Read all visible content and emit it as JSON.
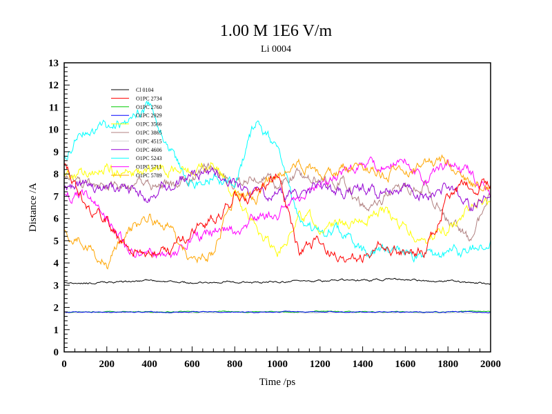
{
  "chart_data": {
    "type": "line",
    "title": "1.00 M 1E6 V/m",
    "subtitle": "Li 0004",
    "xlabel": "Time /ps",
    "ylabel": "Distance /A",
    "xlim": [
      0,
      2000
    ],
    "ylim": [
      0,
      13
    ],
    "xticks": [
      "0",
      "200",
      "400",
      "600",
      "800",
      "1000",
      "1200",
      "1400",
      "1600",
      "1800",
      "2000"
    ],
    "yticks": [
      "0",
      "1",
      "2",
      "3",
      "4",
      "5",
      "6",
      "7",
      "8",
      "9",
      "10",
      "11",
      "12",
      "13"
    ],
    "grid": false,
    "legend_position": "top-left",
    "x": [
      0,
      100,
      200,
      300,
      400,
      500,
      600,
      700,
      800,
      900,
      1000,
      1100,
      1200,
      1300,
      1400,
      1500,
      1600,
      1700,
      1800,
      1900,
      2000
    ],
    "series": [
      {
        "name": "Cl 0104",
        "color": "#000000",
        "values": [
          3.15,
          3.1,
          3.1,
          3.15,
          3.2,
          3.15,
          3.1,
          3.15,
          3.15,
          3.1,
          3.15,
          3.15,
          3.2,
          3.2,
          3.2,
          3.25,
          3.25,
          3.2,
          3.2,
          3.1,
          3.1
        ]
      },
      {
        "name": "O1PC 2734",
        "color": "#ff0000",
        "values": [
          8.5,
          6.5,
          6.0,
          4.5,
          4.5,
          4.5,
          5.5,
          6.0,
          7.0,
          7.0,
          8.0,
          4.5,
          5.0,
          4.3,
          4.3,
          4.7,
          4.5,
          4.5,
          7.0,
          7.5,
          7.5
        ]
      },
      {
        "name": "O1PC 2760",
        "color": "#00cc00",
        "values": [
          1.8,
          1.8,
          1.8,
          1.82,
          1.8,
          1.8,
          1.8,
          1.82,
          1.8,
          1.8,
          1.8,
          1.8,
          1.82,
          1.8,
          1.8,
          1.8,
          1.8,
          1.8,
          1.8,
          1.82,
          1.8
        ]
      },
      {
        "name": "O1PC 2929",
        "color": "#0000ff",
        "values": [
          1.78,
          1.8,
          1.78,
          1.8,
          1.8,
          1.78,
          1.8,
          1.8,
          1.8,
          1.78,
          1.8,
          1.8,
          1.8,
          1.78,
          1.8,
          1.8,
          1.78,
          1.8,
          1.8,
          1.8,
          1.78
        ]
      },
      {
        "name": "O1PC 3566",
        "color": "#ffff00",
        "values": [
          8.0,
          8.0,
          8.2,
          8.0,
          8.2,
          8.3,
          8.2,
          8.5,
          7.0,
          5.5,
          4.5,
          6.0,
          5.8,
          5.8,
          6.0,
          6.5,
          5.5,
          5.0,
          5.5,
          6.5,
          6.8
        ]
      },
      {
        "name": "O1PC 3865",
        "color": "#b08080",
        "values": [
          8.0,
          7.5,
          7.5,
          7.5,
          7.5,
          7.5,
          7.8,
          8.5,
          7.5,
          8.0,
          7.5,
          8.0,
          7.5,
          7.8,
          6.5,
          7.0,
          7.5,
          7.5,
          6.0,
          5.0,
          7.0
        ]
      },
      {
        "name": "O1PC 4515",
        "color": "#d3d3d3",
        "values": [
          1.75,
          1.78,
          1.75,
          1.78,
          1.76,
          1.78,
          1.75,
          1.78,
          1.76,
          1.75,
          1.78,
          1.76,
          1.75,
          1.78,
          1.76,
          1.75,
          1.78,
          1.76,
          1.75,
          1.76,
          1.75
        ]
      },
      {
        "name": "O1PC 4606",
        "color": "#9400d3",
        "values": [
          7.3,
          7.5,
          7.3,
          7.5,
          7.0,
          7.5,
          8.0,
          8.0,
          7.5,
          7.0,
          7.0,
          7.0,
          7.5,
          7.0,
          7.5,
          7.0,
          7.5,
          6.8,
          7.5,
          6.5,
          7.0
        ]
      },
      {
        "name": "O1PC 5243",
        "color": "#00ffff",
        "values": [
          9.0,
          10.0,
          10.0,
          10.5,
          11.0,
          9.0,
          7.5,
          8.0,
          7.5,
          10.5,
          9.0,
          6.0,
          5.5,
          5.5,
          4.5,
          4.5,
          4.5,
          4.0,
          4.5,
          4.5,
          5.0
        ]
      },
      {
        "name": "O1PC 5711",
        "color": "#ff00ff",
        "values": [
          7.0,
          7.0,
          6.0,
          4.5,
          4.5,
          4.0,
          5.0,
          5.5,
          5.5,
          6.0,
          6.0,
          7.0,
          7.5,
          8.0,
          8.5,
          8.5,
          8.5,
          7.5,
          8.5,
          8.0,
          7.0
        ]
      },
      {
        "name": "O1PC 5789",
        "color": "#ffa500",
        "values": [
          5.5,
          5.0,
          4.0,
          5.5,
          6.0,
          5.5,
          4.0,
          4.5,
          7.0,
          7.0,
          8.0,
          8.5,
          8.0,
          8.2,
          8.5,
          8.0,
          8.2,
          8.5,
          8.5,
          7.5,
          7.5
        ]
      }
    ]
  }
}
